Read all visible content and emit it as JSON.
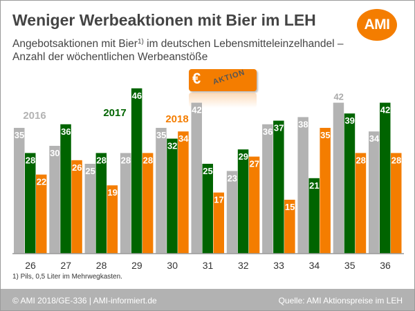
{
  "header": {
    "title": "Weniger Werbeaktionen mit Bier im LEH",
    "subtitle_line1_pre": "Angebotsaktionen mit Bier",
    "subtitle_sup": "1)",
    "subtitle_line1_post": " im deutschen Lebensmitteleinzelhandel –",
    "subtitle_line2": "Anzahl der wöchentlichen Werbeanstöße",
    "logo": "AMI"
  },
  "badge": {
    "euro": "€",
    "word": "AKTION"
  },
  "footnote": "1) Pils, 0,5 Liter im Mehrwegkasten.",
  "footer": {
    "left": "© AMI 2018/GE-336 | AMI-informiert.de",
    "right": "Quelle: AMI Aktionspreise im LEH"
  },
  "chart_data": {
    "type": "bar",
    "title": "Weniger Werbeaktionen mit Bier im LEH",
    "xlabel": "",
    "ylabel": "",
    "ylim": [
      0,
      46
    ],
    "grid": false,
    "legend": "inline labels above bars",
    "categories": [
      "26",
      "27",
      "28",
      "29",
      "30",
      "31",
      "32",
      "33",
      "34",
      "35",
      "36"
    ],
    "series": [
      {
        "name": "2016",
        "color": "#b3b3b3",
        "values": [
          35,
          30,
          25,
          28,
          35,
          42,
          23,
          36,
          38,
          42,
          34
        ]
      },
      {
        "name": "2017",
        "color": "#006400",
        "values": [
          28,
          36,
          28,
          46,
          32,
          25,
          29,
          37,
          21,
          39,
          42
        ]
      },
      {
        "name": "2018",
        "color": "#f47d00",
        "values": [
          22,
          26,
          19,
          28,
          34,
          17,
          27,
          15,
          35,
          28,
          28
        ]
      }
    ]
  }
}
